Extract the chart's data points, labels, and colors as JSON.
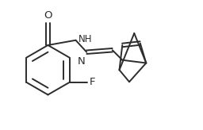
{
  "background_color": "#ffffff",
  "line_color": "#2c2c2c",
  "line_width": 1.4,
  "font_size": 8.5,
  "figsize": [
    2.56,
    1.64
  ],
  "dpi": 100,
  "xlim": [
    0.0,
    10.0
  ],
  "ylim": [
    0.0,
    6.5
  ]
}
